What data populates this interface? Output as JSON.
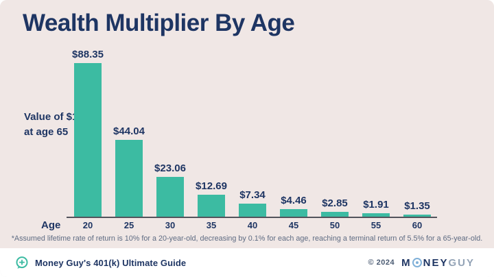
{
  "title": "Wealth Multiplier By Age",
  "chart_data": {
    "type": "bar",
    "title": "Wealth Multiplier By Age",
    "xlabel": "Age",
    "ylabel": "Value of $1 at age 65",
    "categories": [
      "20",
      "25",
      "30",
      "35",
      "40",
      "45",
      "50",
      "55",
      "60"
    ],
    "values": [
      88.35,
      44.04,
      23.06,
      12.69,
      7.34,
      4.46,
      2.85,
      1.91,
      1.35
    ],
    "value_labels": [
      "$88.35",
      "$44.04",
      "$23.06",
      "$12.69",
      "$7.34",
      "$4.46",
      "$2.85",
      "$1.91",
      "$1.35"
    ],
    "ylim": [
      0,
      88.35
    ],
    "grid": false,
    "legend": false,
    "bar_color": "#3CBBA2"
  },
  "ylabel_line1": "Value of $1",
  "ylabel_line2": "at age 65",
  "xlabel": "Age",
  "footnote": "*Assumed lifetime rate of return is 10% for a 20-year-old, decreasing by 0.1% for each age, reaching a terminal return of 5.5% for a 65-year-old.",
  "footer": {
    "guide_label": "Money Guy's 401(k) Ultimate Guide",
    "copyright": "© 2024",
    "brand_part1": "M",
    "brand_part2": "NEY",
    "brand_part3": "GUY",
    "plus_icon": "plus-speech-bubble",
    "brand_o_icon": "target-circle"
  },
  "colors": {
    "background": "#F0E7E5",
    "bar": "#3CBBA2",
    "navy": "#1E3563",
    "axis_line": "#53535B",
    "footnote_text": "#5E6B82",
    "brand_gray": "#93A3B6",
    "brand_o_blue": "#7FB0D8",
    "footer_bg": "#FFFFFF"
  }
}
